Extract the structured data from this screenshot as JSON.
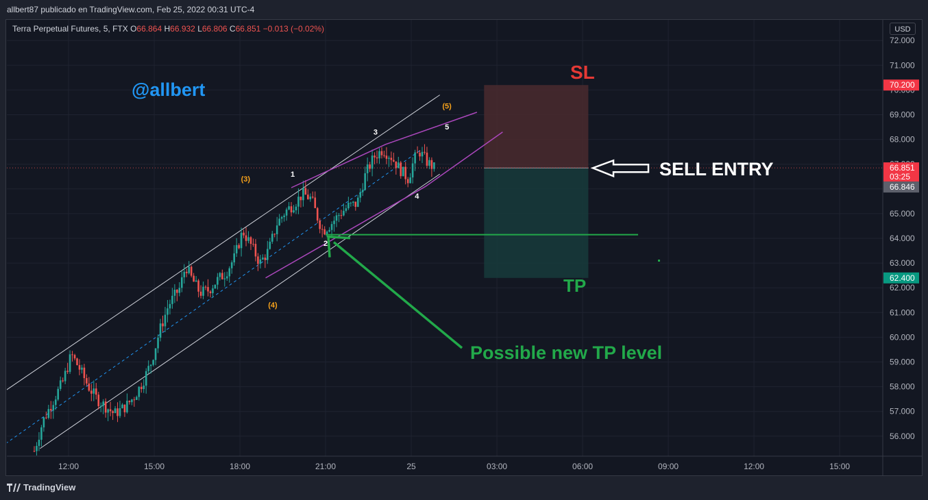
{
  "header": {
    "publish_line": "allbert87 publicado en TradingView.com, Feb 25, 2022 00:31 UTC-4"
  },
  "legend": {
    "symbol": "Terra Perpetual Futures, 5, FTX",
    "open_label": "O",
    "open_value": "66.864",
    "high_label": "H",
    "high_value": "66.932",
    "low_label": "L",
    "low_value": "66.806",
    "close_label": "C",
    "close_value": "66.851",
    "change": "−0.013 (−0.02%)"
  },
  "currency_button": "USD",
  "watermark_text": "@allbert",
  "branding": "TradingView",
  "annotations": {
    "sl": "SL",
    "tp": "TP",
    "sell_entry": "SELL ENTRY",
    "new_tp": "Possible new TP level"
  },
  "colors": {
    "background": "#131722",
    "up_candle": "#26a69a",
    "down_candle": "#ef5350",
    "channel": "#d1d4dc",
    "wedge": "#ab47bc",
    "stop_zone": "#4a2a2e",
    "target_zone": "#17393a",
    "accent_green": "#22a94a",
    "accent_red": "#e53935",
    "watermark": "#2196f3",
    "wave_orange": "#f7a21b"
  },
  "chart_data": {
    "type": "candlestick",
    "interval": "5",
    "ylim": [
      55.2,
      72.4
    ],
    "y_ticks": [
      {
        "value": 72,
        "label": "72.000"
      },
      {
        "value": 71,
        "label": "71.000"
      },
      {
        "value": 70,
        "label": "70.000"
      },
      {
        "value": 69,
        "label": "69.000"
      },
      {
        "value": 68,
        "label": "68.000"
      },
      {
        "value": 67,
        "label": "67.000"
      },
      {
        "value": 66,
        "label": "66.000"
      },
      {
        "value": 65,
        "label": "65.000"
      },
      {
        "value": 64,
        "label": "64.000"
      },
      {
        "value": 63,
        "label": "63.000"
      },
      {
        "value": 62,
        "label": "62.000"
      },
      {
        "value": 61,
        "label": "61.000"
      },
      {
        "value": 60,
        "label": "60.000"
      },
      {
        "value": 59,
        "label": "59.000"
      },
      {
        "value": 58,
        "label": "58.000"
      },
      {
        "value": 57,
        "label": "57.000"
      },
      {
        "value": 56,
        "label": "56.000"
      }
    ],
    "x_ticks": [
      {
        "hours": 12,
        "label": "12:00"
      },
      {
        "hours": 15,
        "label": "15:00"
      },
      {
        "hours": 18,
        "label": "18:00"
      },
      {
        "hours": 21,
        "label": "21:00"
      },
      {
        "hours": 24,
        "label": "25"
      },
      {
        "hours": 27,
        "label": "03:00"
      },
      {
        "hours": 30,
        "label": "06:00"
      },
      {
        "hours": 33,
        "label": "09:00"
      },
      {
        "hours": 36,
        "label": "12:00"
      },
      {
        "hours": 39,
        "label": "15:00"
      }
    ],
    "xlim_hours": [
      9.8,
      39.3
    ],
    "price_path": [
      [
        10.8,
        55.4
      ],
      [
        11.1,
        56.6
      ],
      [
        11.4,
        57.3
      ],
      [
        11.8,
        58.2
      ],
      [
        12.1,
        59.3
      ],
      [
        12.4,
        58.7
      ],
      [
        12.7,
        58.0
      ],
      [
        13.0,
        57.5
      ],
      [
        13.3,
        57.2
      ],
      [
        13.6,
        56.9
      ],
      [
        14.0,
        57.2
      ],
      [
        14.3,
        57.6
      ],
      [
        14.6,
        58.2
      ],
      [
        14.9,
        59.0
      ],
      [
        15.2,
        60.3
      ],
      [
        15.5,
        61.3
      ],
      [
        15.9,
        62.0
      ],
      [
        16.1,
        62.9
      ],
      [
        16.3,
        62.4
      ],
      [
        16.6,
        61.8
      ],
      [
        16.9,
        61.9
      ],
      [
        17.2,
        62.3
      ],
      [
        17.5,
        62.6
      ],
      [
        17.8,
        63.2
      ],
      [
        18.1,
        64.3
      ],
      [
        18.4,
        63.7
      ],
      [
        18.7,
        63.0
      ],
      [
        19.0,
        63.5
      ],
      [
        19.3,
        64.6
      ],
      [
        19.6,
        65.1
      ],
      [
        19.9,
        65.4
      ],
      [
        20.2,
        65.8
      ],
      [
        20.5,
        65.6
      ],
      [
        20.7,
        64.9
      ],
      [
        20.9,
        64.3
      ],
      [
        21.2,
        64.6
      ],
      [
        21.5,
        65.0
      ],
      [
        21.8,
        65.3
      ],
      [
        22.1,
        65.4
      ],
      [
        22.4,
        66.6
      ],
      [
        22.7,
        67.3
      ],
      [
        23.0,
        67.6
      ],
      [
        23.3,
        67.3
      ],
      [
        23.6,
        66.8
      ],
      [
        23.9,
        66.4
      ],
      [
        24.1,
        67.2
      ],
      [
        24.3,
        67.5
      ],
      [
        24.55,
        67.1
      ],
      [
        24.8,
        66.85
      ]
    ],
    "ohlc_last": {
      "open": 66.864,
      "high": 66.932,
      "low": 66.806,
      "close": 66.851
    },
    "price_labels": [
      {
        "value": 70.2,
        "label": "70.200",
        "color": "#f23645"
      },
      {
        "value": 66.851,
        "label": "66.851",
        "sublabel": "03:25",
        "color": "#f23645"
      },
      {
        "value": 66.846,
        "label": "66.846",
        "color": "#5d606b"
      },
      {
        "value": 62.4,
        "label": "62.400",
        "color": "#089981"
      }
    ],
    "position": {
      "side": "short",
      "entry": 66.846,
      "stop": 70.2,
      "target": 62.4,
      "start_hours": 26.55,
      "end_hours": 30.2
    },
    "new_tp_level": 64.15,
    "channel": {
      "upper": [
        [
          9.8,
          57.85
        ],
        [
          25.0,
          69.8
        ]
      ],
      "middle": [
        [
          9.8,
          55.7
        ],
        [
          24.3,
          67.55
        ]
      ],
      "lower": [
        [
          11.0,
          55.5
        ],
        [
          25.0,
          66.6
        ]
      ]
    },
    "wedge": {
      "upper": [
        [
          19.8,
          66.05
        ],
        [
          23.1,
          67.8
        ],
        [
          26.3,
          69.1
        ]
      ],
      "lower": [
        [
          18.9,
          62.4
        ],
        [
          24.5,
          66.1
        ],
        [
          27.2,
          68.3
        ]
      ],
      "bottom_anchor": [
        21.0,
        64.15
      ]
    },
    "wave_labels": [
      {
        "label": "1",
        "hours": 19.85,
        "value": 66.5,
        "color": "#ffffff"
      },
      {
        "label": "2",
        "hours": 21.0,
        "value": 63.7,
        "color": "#ffffff"
      },
      {
        "label": "3",
        "hours": 22.75,
        "value": 68.2,
        "color": "#ffffff"
      },
      {
        "label": "4",
        "hours": 24.2,
        "value": 65.6,
        "color": "#ffffff"
      },
      {
        "label": "5",
        "hours": 25.25,
        "value": 68.4,
        "color": "#ffffff"
      },
      {
        "label": "(3)",
        "hours": 18.2,
        "value": 66.3,
        "color": "#f7a21b"
      },
      {
        "label": "(4)",
        "hours": 19.15,
        "value": 61.2,
        "color": "#f7a21b"
      },
      {
        "label": "(5)",
        "hours": 25.25,
        "value": 69.25,
        "color": "#f7a21b"
      }
    ]
  }
}
